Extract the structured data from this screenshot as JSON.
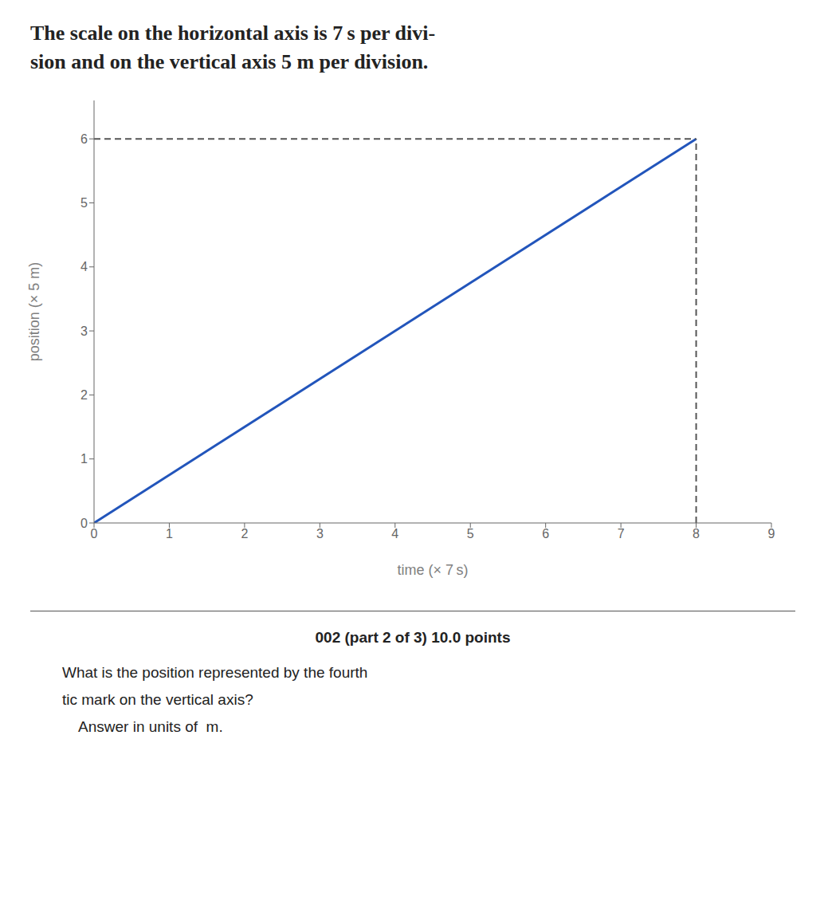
{
  "chart_data": {
    "type": "line",
    "title": [
      "The scale on the horizontal axis is 7 s per divi-",
      "sion and on the vertical axis 5 m per division."
    ],
    "xlabel": "time (× 7 s)",
    "ylabel": "position (× 5 m)",
    "xlim": [
      0,
      9
    ],
    "ylim": [
      0,
      6.6
    ],
    "xticks": [
      0,
      1,
      2,
      3,
      4,
      5,
      6,
      7,
      8,
      9
    ],
    "yticks": [
      0,
      1,
      2,
      3,
      4,
      5,
      6
    ],
    "grid": false,
    "series": [
      {
        "color": "#2255bb",
        "line_style": "solid",
        "x": [
          0,
          8
        ],
        "values": [
          0,
          6
        ]
      },
      {
        "color": "#555555",
        "line_style": "dashed",
        "x": [
          0,
          8
        ],
        "values": [
          6,
          6
        ]
      },
      {
        "color": "#555555",
        "line_style": "dashed",
        "x": [
          8,
          8
        ],
        "values": [
          0,
          6
        ]
      }
    ],
    "annotations": [
      "002 (part 2 of 3) 10.0 points",
      "What is the position represented by the fourth",
      "tic mark on the vertical axis?",
      "    Answer in units of  m."
    ]
  }
}
